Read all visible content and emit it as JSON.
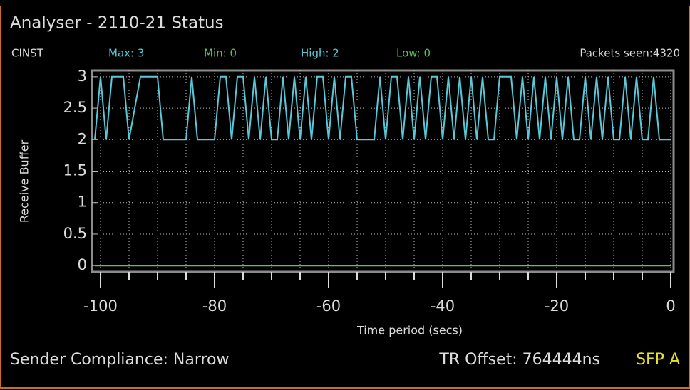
{
  "header": {
    "title": "Analyser - 2110-21 Status",
    "stats": [
      "CINST",
      "Max: 3",
      "Min: 0",
      "High: 2",
      "Low: 0"
    ],
    "packets": "Packets seen:4320"
  },
  "chart_data": {
    "type": "line",
    "xlabel": "Time period (secs)",
    "ylabel": "Receive Buffer",
    "xlim": [
      -101.5,
      0.5
    ],
    "ylim": [
      -0.1,
      3.1
    ],
    "xticks": [
      -100,
      -80,
      -60,
      -40,
      -20,
      0
    ],
    "xminorticks": [
      -95,
      -90,
      -85,
      -75,
      -70,
      -65,
      -55,
      -50,
      -45,
      -35,
      -30,
      -25,
      -15,
      -10,
      -5
    ],
    "yticks": [
      0,
      0.5,
      1,
      1.5,
      2,
      2.5,
      3
    ],
    "grid": true,
    "series": [
      {
        "color": "#5bc8d8",
        "x": [
          -101,
          -100,
          -99,
          -98,
          -97,
          -96,
          -95,
          -94,
          -93,
          -92,
          -91,
          -90,
          -89,
          -88,
          -87,
          -86,
          -85,
          -84,
          -83,
          -82,
          -81,
          -80,
          -79,
          -78,
          -77,
          -76,
          -75,
          -74,
          -73,
          -72,
          -71,
          -70,
          -69,
          -68,
          -67,
          -66,
          -65,
          -64,
          -63,
          -62,
          -61,
          -60,
          -59,
          -58,
          -57,
          -56,
          -55,
          -54,
          -53,
          -52,
          -51,
          -50,
          -49,
          -48,
          -47,
          -46,
          -45,
          -44,
          -43,
          -42,
          -41,
          -40,
          -39,
          -38,
          -37,
          -36,
          -35,
          -34,
          -33,
          -32,
          -31,
          -30,
          -29,
          -28,
          -27,
          -26,
          -25,
          -24,
          -23,
          -22,
          -21,
          -20,
          -19,
          -18,
          -17,
          -16,
          -15,
          -14,
          -13,
          -12,
          -11,
          -10,
          -9,
          -8,
          -7,
          -6,
          -5,
          -4,
          -3,
          -2,
          -1,
          0
        ],
        "values": [
          2,
          3,
          2,
          3,
          3,
          3,
          2,
          2.5,
          3,
          3,
          3,
          3,
          2,
          2,
          2,
          2,
          2,
          3,
          2,
          2,
          2,
          2,
          3,
          3,
          2,
          3,
          3,
          2,
          3,
          2,
          3,
          2,
          2,
          3,
          2,
          3,
          2,
          3,
          2,
          3,
          3,
          2,
          3,
          2,
          3,
          3,
          2,
          2,
          2,
          2,
          3,
          2,
          3,
          3,
          2,
          3,
          2,
          3,
          2,
          3,
          3,
          2,
          3,
          2,
          3,
          2,
          3,
          2,
          3,
          2,
          2,
          3,
          3,
          3,
          2,
          3,
          2,
          3,
          2,
          3,
          2,
          3,
          2,
          3,
          2,
          2,
          3,
          2,
          3,
          2,
          3,
          2,
          2,
          3,
          2,
          3,
          2,
          2,
          3,
          2,
          2,
          2
        ]
      },
      {
        "color": "#5cc05c",
        "x": [
          -101,
          0
        ],
        "values": [
          0,
          0
        ]
      }
    ]
  },
  "footer": {
    "compliance": "Sender Compliance: Narrow",
    "offset": "TR Offset: 764444ns",
    "port": "SFP A"
  }
}
